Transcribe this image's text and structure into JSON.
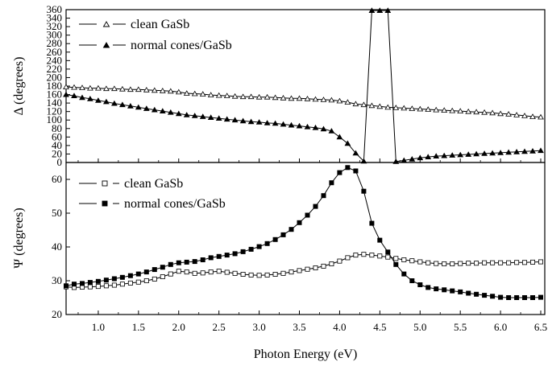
{
  "chart_data": [
    {
      "type": "line",
      "panel": "top",
      "title": "",
      "xlabel": "Photon Energy (eV)",
      "ylabel": "Δ (degrees)",
      "xlim": [
        0.6,
        6.55
      ],
      "ylim": [
        0,
        360
      ],
      "yticks": [
        0,
        20,
        40,
        60,
        80,
        100,
        120,
        140,
        160,
        180,
        200,
        220,
        240,
        260,
        280,
        300,
        320,
        340,
        360
      ],
      "grid": false,
      "legend": "top-left",
      "series": [
        {
          "name": "clean GaSb",
          "marker": "open-triangle",
          "x": [
            0.6,
            0.7,
            0.8,
            0.9,
            1.0,
            1.1,
            1.2,
            1.3,
            1.4,
            1.5,
            1.6,
            1.7,
            1.8,
            1.9,
            2.0,
            2.1,
            2.2,
            2.3,
            2.4,
            2.5,
            2.6,
            2.7,
            2.8,
            2.9,
            3.0,
            3.1,
            3.2,
            3.3,
            3.4,
            3.5,
            3.6,
            3.7,
            3.8,
            3.9,
            4.0,
            4.1,
            4.2,
            4.3,
            4.4,
            4.5,
            4.6,
            4.7,
            4.8,
            4.9,
            5.0,
            5.1,
            5.2,
            5.3,
            5.4,
            5.5,
            5.6,
            5.7,
            5.8,
            5.9,
            6.0,
            6.1,
            6.2,
            6.3,
            6.4,
            6.5
          ],
          "y": [
            178,
            177,
            176,
            175,
            175,
            174,
            174,
            173,
            172,
            172,
            171,
            170,
            169,
            168,
            166,
            163,
            162,
            161,
            159,
            158,
            157,
            156,
            155,
            155,
            154,
            154,
            153,
            152,
            151,
            151,
            150,
            149,
            148,
            147,
            145,
            142,
            138,
            136,
            134,
            132,
            130,
            129,
            128,
            127,
            126,
            125,
            124,
            123,
            122,
            121,
            120,
            119,
            118,
            117,
            115,
            114,
            112,
            110,
            108,
            107
          ]
        },
        {
          "name": "normal cones/GaSb",
          "marker": "filled-triangle",
          "x": [
            0.6,
            0.7,
            0.8,
            0.9,
            1.0,
            1.1,
            1.2,
            1.3,
            1.4,
            1.5,
            1.6,
            1.7,
            1.8,
            1.9,
            2.0,
            2.1,
            2.2,
            2.3,
            2.4,
            2.5,
            2.6,
            2.7,
            2.8,
            2.9,
            3.0,
            3.1,
            3.2,
            3.3,
            3.4,
            3.5,
            3.6,
            3.7,
            3.8,
            3.9,
            4.0,
            4.1,
            4.2,
            4.3,
            4.4,
            4.5,
            4.6,
            4.7,
            4.8,
            4.9,
            5.0,
            5.1,
            5.2,
            5.3,
            5.4,
            5.5,
            5.6,
            5.7,
            5.8,
            5.9,
            6.0,
            6.1,
            6.2,
            6.3,
            6.4,
            6.5
          ],
          "y": [
            160,
            157,
            153,
            150,
            146,
            143,
            139,
            136,
            133,
            130,
            127,
            124,
            121,
            118,
            115,
            112,
            110,
            108,
            106,
            104,
            102,
            100,
            98,
            96,
            95,
            93,
            92,
            90,
            88,
            86,
            84,
            82,
            79,
            74,
            60,
            45,
            22,
            3,
            358,
            358,
            358,
            2,
            5,
            8,
            11,
            13,
            15,
            16,
            17,
            18,
            19,
            20,
            21,
            22,
            23,
            24,
            25,
            26,
            27,
            28
          ]
        }
      ]
    },
    {
      "type": "line",
      "panel": "bottom",
      "title": "",
      "xlabel": "Photon Energy (eV)",
      "ylabel": "Ψ (degrees)",
      "xlim": [
        0.6,
        6.55
      ],
      "ylim": [
        20,
        65
      ],
      "yticks": [
        20,
        30,
        40,
        50,
        60
      ],
      "xticks": [
        1.0,
        1.5,
        2.0,
        2.5,
        3.0,
        3.5,
        4.0,
        4.5,
        5.0,
        5.5,
        6.0,
        6.5
      ],
      "grid": false,
      "legend": "top-left",
      "series": [
        {
          "name": "clean GaSb",
          "marker": "open-square",
          "x": [
            0.6,
            0.7,
            0.8,
            0.9,
            1.0,
            1.1,
            1.2,
            1.3,
            1.4,
            1.5,
            1.6,
            1.7,
            1.8,
            1.9,
            2.0,
            2.1,
            2.2,
            2.3,
            2.4,
            2.5,
            2.6,
            2.7,
            2.8,
            2.9,
            3.0,
            3.1,
            3.2,
            3.3,
            3.4,
            3.5,
            3.6,
            3.7,
            3.8,
            3.9,
            4.0,
            4.1,
            4.2,
            4.3,
            4.4,
            4.5,
            4.6,
            4.7,
            4.8,
            4.9,
            5.0,
            5.1,
            5.2,
            5.3,
            5.4,
            5.5,
            5.6,
            5.7,
            5.8,
            5.9,
            6.0,
            6.1,
            6.2,
            6.3,
            6.4,
            6.5
          ],
          "y": [
            28.2,
            28.0,
            28.1,
            28.2,
            28.3,
            28.5,
            28.7,
            29.0,
            29.3,
            29.6,
            30.0,
            30.5,
            31.2,
            32.0,
            32.8,
            32.6,
            32.2,
            32.3,
            32.6,
            32.8,
            32.5,
            32.2,
            31.9,
            31.7,
            31.6,
            31.7,
            31.9,
            32.2,
            32.6,
            33.0,
            33.4,
            33.8,
            34.3,
            35.0,
            35.8,
            36.8,
            37.6,
            37.8,
            37.6,
            37.3,
            37.0,
            36.6,
            36.2,
            35.9,
            35.6,
            35.3,
            35.1,
            35.0,
            35.0,
            35.1,
            35.2,
            35.2,
            35.3,
            35.3,
            35.3,
            35.3,
            35.4,
            35.4,
            35.5,
            35.6
          ]
        },
        {
          "name": "normal cones/GaSb",
          "marker": "filled-square",
          "x": [
            0.6,
            0.7,
            0.8,
            0.9,
            1.0,
            1.1,
            1.2,
            1.3,
            1.4,
            1.5,
            1.6,
            1.7,
            1.8,
            1.9,
            2.0,
            2.1,
            2.2,
            2.3,
            2.4,
            2.5,
            2.6,
            2.7,
            2.8,
            2.9,
            3.0,
            3.1,
            3.2,
            3.3,
            3.4,
            3.5,
            3.6,
            3.7,
            3.8,
            3.9,
            4.0,
            4.1,
            4.2,
            4.3,
            4.4,
            4.5,
            4.6,
            4.7,
            4.8,
            4.9,
            5.0,
            5.1,
            5.2,
            5.3,
            5.4,
            5.5,
            5.6,
            5.7,
            5.8,
            5.9,
            6.0,
            6.1,
            6.2,
            6.3,
            6.4,
            6.5
          ],
          "y": [
            28.5,
            29.0,
            29.2,
            29.5,
            29.8,
            30.2,
            30.6,
            31.0,
            31.5,
            32.0,
            32.6,
            33.3,
            34.0,
            34.8,
            35.3,
            35.5,
            35.7,
            36.2,
            36.8,
            37.2,
            37.6,
            38.0,
            38.6,
            39.3,
            40.1,
            41.0,
            42.2,
            43.6,
            45.2,
            47.2,
            49.4,
            52.0,
            55.2,
            59.0,
            62.0,
            63.5,
            62.5,
            56.5,
            47.0,
            42.0,
            38.5,
            34.8,
            32.0,
            30.0,
            28.8,
            28.0,
            27.6,
            27.3,
            27.0,
            26.7,
            26.3,
            26.0,
            25.7,
            25.4,
            25.1,
            25.0,
            25.0,
            25.0,
            25.0,
            25.1
          ]
        }
      ]
    }
  ]
}
